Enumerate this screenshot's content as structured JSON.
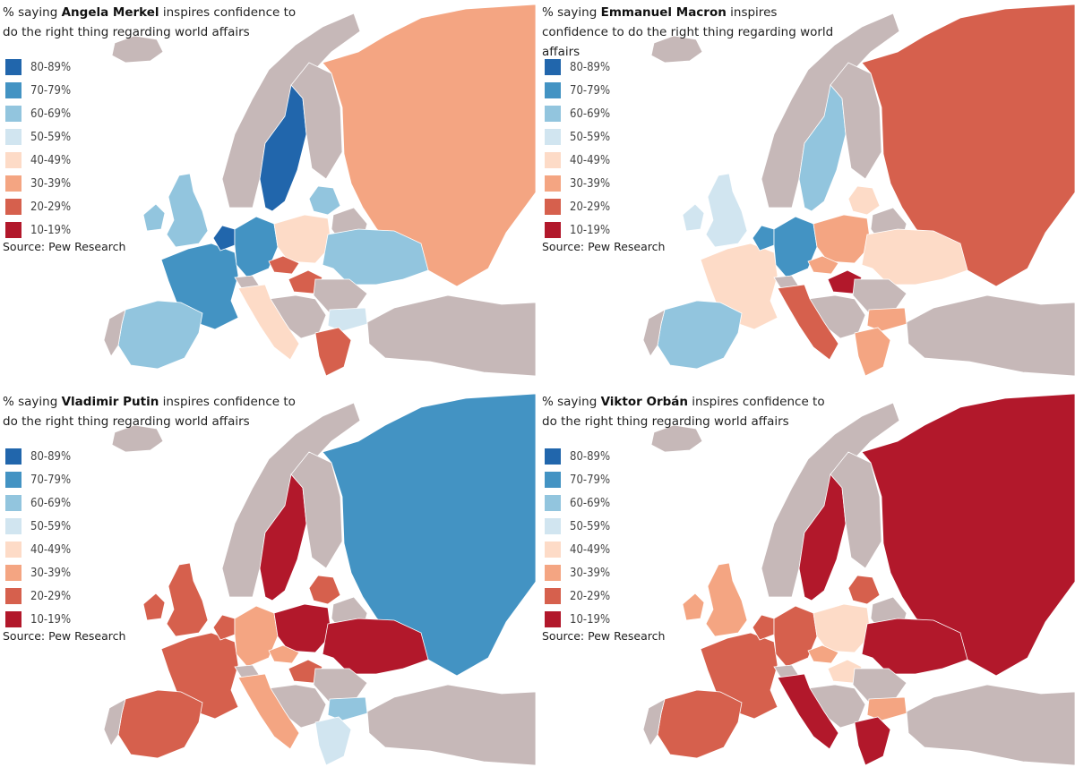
{
  "source": "Source: Pew Research",
  "legend": [
    {
      "label": "80-89%",
      "color": "#2166ac"
    },
    {
      "label": "70-79%",
      "color": "#4393c3"
    },
    {
      "label": "60-69%",
      "color": "#92c5de"
    },
    {
      "label": "50-59%",
      "color": "#d1e5f0"
    },
    {
      "label": "40-49%",
      "color": "#fddbc7"
    },
    {
      "label": "30-39%",
      "color": "#f4a582"
    },
    {
      "label": "20-29%",
      "color": "#d6604d"
    },
    {
      "label": "10-19%",
      "color": "#b2182b"
    }
  ],
  "no_data_color": "#c6b8b8",
  "panels": [
    {
      "title_prefix": "% saying ",
      "leader": "Angela Merkel",
      "title_suffix": " inspires confidence to do the right thing regarding world affairs",
      "fills": {
        "uk": "60-69%",
        "ireland": "60-69%",
        "france": "70-79%",
        "spain": "60-69%",
        "portugal": "none",
        "netherlands": "80-89%",
        "germany": "70-79%",
        "poland": "40-49%",
        "sweden": "80-89%",
        "norway": "none",
        "finland": "none",
        "baltics": "60-69%",
        "ukraine": "60-69%",
        "russia": "30-39%",
        "italy": "40-49%",
        "hungary": "20-29%",
        "czechia": "20-29%",
        "greece": "20-29%",
        "bulgaria": "50-59%",
        "romania": "none",
        "balkans": "none",
        "turkey": "none",
        "belarus": "none",
        "switzerland": "none",
        "iceland": "none"
      }
    },
    {
      "title_prefix": "% saying ",
      "leader": "Emmanuel Macron",
      "title_suffix": " inspires confidence to do the right thing regarding world affairs",
      "fills": {
        "uk": "50-59%",
        "ireland": "50-59%",
        "france": "40-49%",
        "spain": "60-69%",
        "portugal": "none",
        "netherlands": "70-79%",
        "germany": "70-79%",
        "poland": "30-39%",
        "sweden": "60-69%",
        "norway": "none",
        "finland": "none",
        "baltics": "40-49%",
        "ukraine": "40-49%",
        "russia": "20-29%",
        "italy": "20-29%",
        "hungary": "10-19%",
        "czechia": "30-39%",
        "greece": "30-39%",
        "bulgaria": "30-39%",
        "romania": "none",
        "balkans": "none",
        "turkey": "none",
        "belarus": "none",
        "switzerland": "none",
        "iceland": "none"
      }
    },
    {
      "title_prefix": "% saying ",
      "leader": "Vladimir Putin",
      "title_suffix": " inspires confidence to do the right thing regarding world affairs",
      "fills": {
        "uk": "20-29%",
        "ireland": "20-29%",
        "france": "20-29%",
        "spain": "20-29%",
        "portugal": "none",
        "netherlands": "20-29%",
        "germany": "30-39%",
        "poland": "10-19%",
        "sweden": "10-19%",
        "norway": "none",
        "finland": "none",
        "baltics": "20-29%",
        "ukraine": "10-19%",
        "russia": "70-79%",
        "italy": "30-39%",
        "hungary": "20-29%",
        "czechia": "30-39%",
        "greece": "50-59%",
        "bulgaria": "60-69%",
        "romania": "none",
        "balkans": "none",
        "turkey": "none",
        "belarus": "none",
        "switzerland": "none",
        "iceland": "none"
      }
    },
    {
      "title_prefix": "% saying ",
      "leader": "Viktor Orbán",
      "title_suffix": " inspires confidence to do the right thing regarding world affairs",
      "fills": {
        "uk": "30-39%",
        "ireland": "30-39%",
        "france": "20-29%",
        "spain": "20-29%",
        "portugal": "none",
        "netherlands": "20-29%",
        "germany": "20-29%",
        "poland": "40-49%",
        "sweden": "10-19%",
        "norway": "none",
        "finland": "none",
        "baltics": "20-29%",
        "ukraine": "10-19%",
        "russia": "10-19%",
        "italy": "10-19%",
        "hungary": "40-49%",
        "czechia": "30-39%",
        "greece": "10-19%",
        "bulgaria": "30-39%",
        "romania": "none",
        "balkans": "none",
        "turkey": "none",
        "belarus": "none",
        "switzerland": "none",
        "iceland": "none"
      }
    }
  ]
}
